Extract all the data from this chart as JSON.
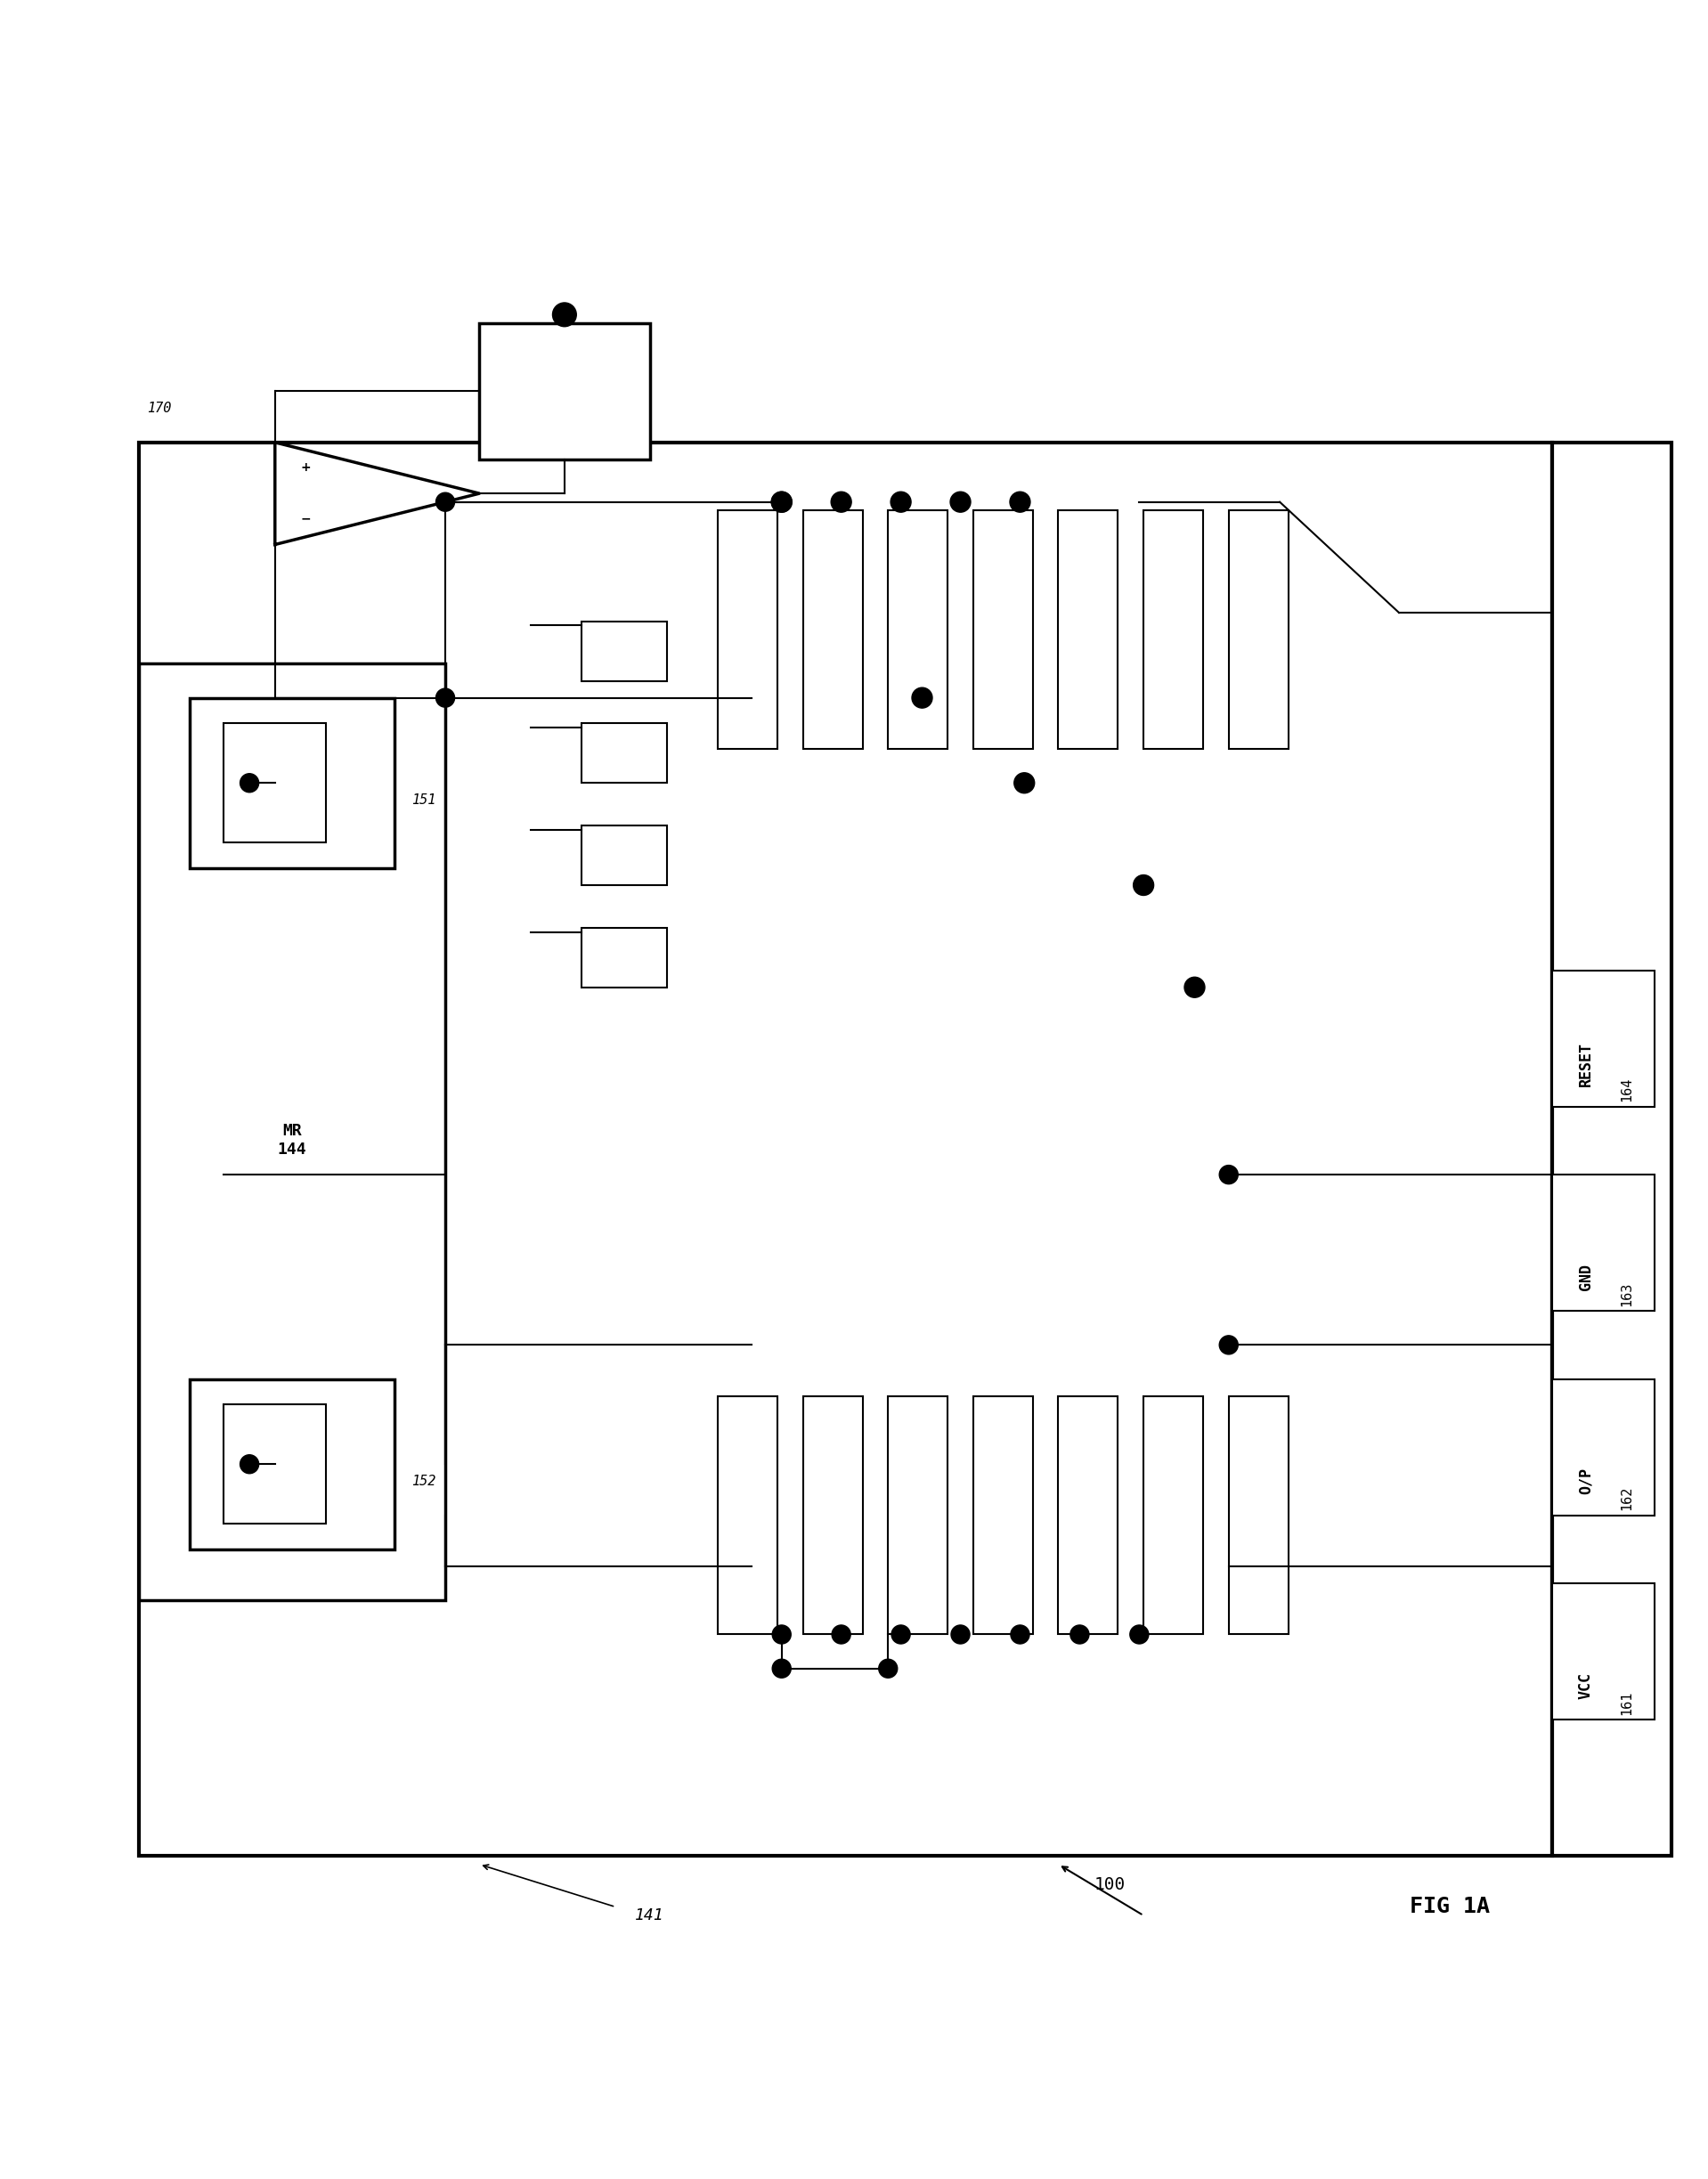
{
  "fig_width": 19.18,
  "fig_height": 24.47,
  "bg_color": "#ffffff",
  "line_color": "#000000",
  "lw": 2.5,
  "lw_thin": 1.5,
  "title": "FIG 1A",
  "label_100": "100",
  "label_141": "141",
  "label_144": "MR\n144",
  "label_151": "151",
  "label_152": "152",
  "label_170": "170",
  "label_161": "VCC\n161",
  "label_162": "O/P\n162",
  "label_163": "GND\n163",
  "label_164": "RESET\n164"
}
